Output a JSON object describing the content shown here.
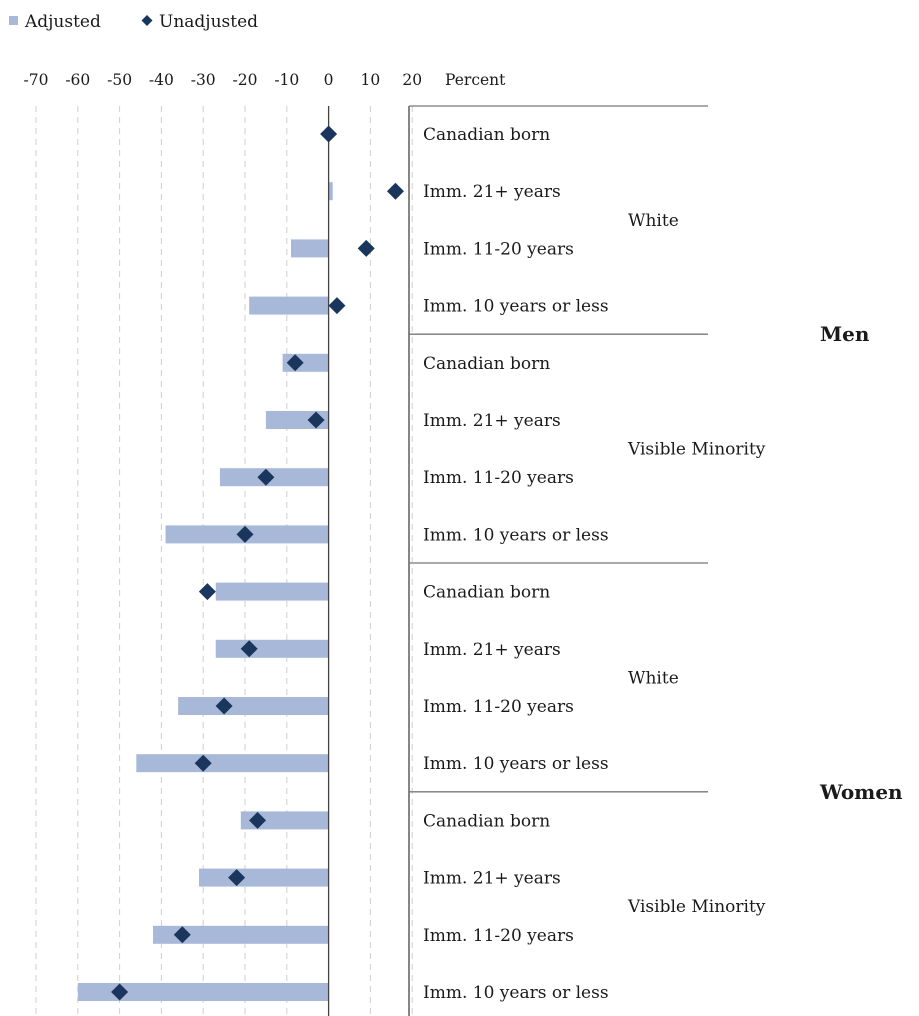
{
  "chart_data": {
    "type": "bar",
    "orientation": "horizontal",
    "xlabel": "Percent",
    "xlim": [
      -70,
      20
    ],
    "xticks": [
      -70,
      -60,
      -50,
      -40,
      -30,
      -20,
      -10,
      0,
      10,
      20
    ],
    "legend": {
      "placement": "top-left",
      "entries": [
        {
          "name": "Adjusted",
          "marker": "square",
          "color": "#a8b8d8"
        },
        {
          "name": "Unadjusted",
          "marker": "diamond",
          "color": "#1b365d"
        }
      ]
    },
    "grid": "vertical-dashed",
    "categories": [
      "Canadian born",
      "Imm. 21+ years",
      "Imm. 11-20 years",
      "Imm. 10 years or less",
      "Canadian born",
      "Imm. 21+ years",
      "Imm. 11-20 years",
      "Imm. 10 years or less",
      "Canadian born",
      "Imm. 21+ years",
      "Imm. 11-20 years",
      "Imm. 10 years or less",
      "Canadian born",
      "Imm. 21+ years",
      "Imm. 11-20 years",
      "Imm. 10 years or less"
    ],
    "groups": [
      {
        "sex": "Men",
        "group": "White",
        "rows": [
          0,
          3
        ]
      },
      {
        "sex": "Men",
        "group": "Visible Minority",
        "rows": [
          4,
          7
        ]
      },
      {
        "sex": "Women",
        "group": "White",
        "rows": [
          8,
          11
        ]
      },
      {
        "sex": "Women",
        "group": "Visible Minority",
        "rows": [
          12,
          15
        ]
      }
    ],
    "sexes": [
      {
        "name": "Men",
        "rows": [
          0,
          7
        ]
      },
      {
        "name": "Women",
        "rows": [
          8,
          15
        ]
      }
    ],
    "series": [
      {
        "name": "Adjusted",
        "type": "bar",
        "values": [
          0,
          1,
          -9,
          -19,
          -11,
          -15,
          -26,
          -39,
          -27,
          -27,
          -36,
          -46,
          -21,
          -31,
          -42,
          -60
        ]
      },
      {
        "name": "Unadjusted",
        "type": "scatter",
        "values": [
          0,
          16,
          9,
          2,
          -8,
          -3,
          -15,
          -20,
          -29,
          -19,
          -25,
          -30,
          -17,
          -22,
          -35,
          -50
        ]
      }
    ]
  }
}
